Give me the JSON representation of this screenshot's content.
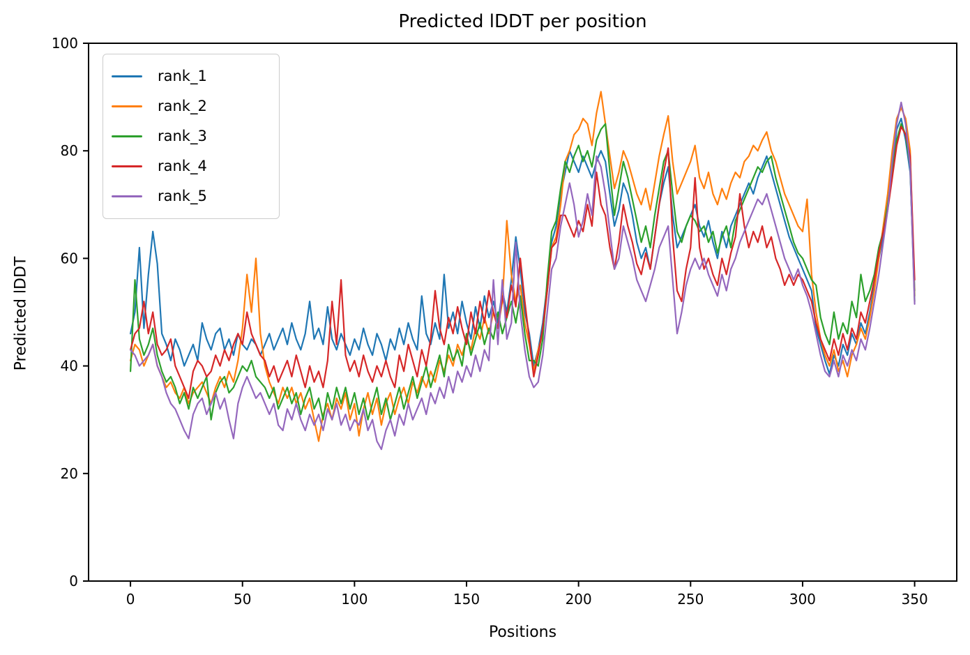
{
  "figure": {
    "title": "Predicted lDDT per position",
    "xlabel": "Positions",
    "ylabel": "Predicted lDDT",
    "background_color": "#ffffff",
    "spine_color": "#000000",
    "legend_border_color": "#cccccc"
  },
  "chart_data": {
    "type": "line",
    "title": "Predicted lDDT per position",
    "xlabel": "Positions",
    "ylabel": "Predicted lDDT",
    "xlim": [
      -18.7,
      368.8
    ],
    "ylim": [
      0,
      100
    ],
    "xticks": [
      0,
      50,
      100,
      150,
      200,
      250,
      300,
      350
    ],
    "yticks": [
      0,
      20,
      40,
      60,
      80,
      100
    ],
    "grid": false,
    "legend_position": "upper left",
    "line_width": 2.2,
    "x_start": 0,
    "x_step": 2,
    "series": [
      {
        "name": "rank_1",
        "color": "#1f77b4",
        "values": [
          46,
          50,
          62,
          47,
          57,
          65,
          59,
          46,
          44,
          41,
          45,
          43,
          40,
          42,
          44,
          41,
          48,
          45,
          43,
          46,
          47,
          43,
          45,
          42,
          46,
          44,
          43,
          45,
          44,
          42,
          44,
          46,
          43,
          45,
          47,
          44,
          48,
          45,
          43,
          46,
          52,
          45,
          47,
          44,
          51,
          45,
          43,
          46,
          44,
          42,
          45,
          43,
          47,
          44,
          42,
          46,
          44,
          41,
          45,
          43,
          47,
          44,
          48,
          45,
          43,
          53,
          46,
          44,
          48,
          45,
          57,
          47,
          50,
          46,
          52,
          48,
          45,
          51,
          47,
          53,
          49,
          52,
          48,
          54,
          50,
          56,
          64,
          58,
          50,
          46,
          40,
          43,
          48,
          55,
          63,
          66,
          72,
          76,
          80,
          78,
          76,
          79,
          77,
          75,
          78,
          80,
          78,
          72,
          66,
          69,
          74,
          72,
          68,
          63,
          60,
          62,
          58,
          64,
          70,
          74,
          77,
          68,
          62,
          64,
          66,
          68,
          70,
          66,
          64,
          67,
          63,
          60,
          65,
          62,
          66,
          68,
          70,
          72,
          74,
          72,
          75,
          77,
          79,
          76,
          73,
          70,
          67,
          64,
          62,
          60,
          58,
          56,
          54,
          47,
          44,
          41,
          38.5,
          42,
          40,
          44,
          42,
          46,
          44,
          48,
          46,
          50,
          55,
          60,
          64,
          70,
          77,
          84,
          86,
          82,
          76,
          54
        ]
      },
      {
        "name": "rank_2",
        "color": "#ff7f0e",
        "values": [
          41,
          44,
          43,
          40,
          42,
          44,
          40,
          38,
          36,
          37,
          35,
          34,
          36,
          33,
          35,
          36,
          37,
          35,
          33,
          36,
          38,
          36,
          39,
          37,
          41,
          47,
          57,
          50,
          60,
          46,
          40,
          37,
          35,
          33,
          36,
          34,
          36,
          33,
          35,
          32,
          34,
          30,
          26,
          31,
          33,
          30,
          34,
          32,
          35,
          30,
          33,
          27,
          32,
          35,
          31,
          34,
          29,
          33,
          35,
          31,
          34,
          36,
          33,
          37,
          35,
          38,
          36,
          39,
          37,
          41,
          39,
          42,
          40,
          44,
          42,
          45,
          43,
          47,
          45,
          49,
          46,
          50,
          47,
          52,
          67,
          57,
          52,
          55,
          48,
          44,
          39,
          43,
          46,
          54,
          62,
          64,
          70,
          78,
          80,
          83,
          84,
          86,
          85,
          81,
          87,
          91,
          85,
          79,
          73,
          76,
          80,
          78,
          75,
          72,
          70,
          73,
          69,
          74,
          79,
          83,
          86.5,
          78,
          72,
          74,
          76,
          78,
          81,
          75,
          73,
          76,
          72,
          70,
          73,
          71,
          74,
          76,
          75,
          78,
          79,
          81,
          80,
          82,
          83.5,
          80,
          78,
          75,
          72,
          70,
          68,
          66,
          65,
          71,
          57,
          50,
          45,
          42,
          40,
          43,
          39,
          41,
          38,
          42,
          44,
          47,
          45,
          49,
          54,
          60,
          66,
          72,
          80,
          86,
          88,
          86,
          80,
          53
        ]
      },
      {
        "name": "rank_3",
        "color": "#2ca02c",
        "values": [
          39,
          56,
          45,
          42,
          44,
          47,
          42,
          39,
          37,
          38,
          36,
          33,
          35,
          32,
          36,
          34,
          36,
          38,
          30,
          35,
          37,
          38,
          35,
          36,
          38,
          40,
          39,
          41,
          38,
          37,
          36,
          34,
          36,
          32,
          34,
          36,
          33,
          35,
          31,
          34,
          36,
          32,
          34,
          30,
          35,
          32,
          36,
          33,
          36,
          32,
          35,
          31,
          34,
          30,
          33,
          36,
          31,
          34,
          30,
          33,
          36,
          32,
          35,
          38,
          34,
          37,
          40,
          36,
          39,
          42,
          38,
          44,
          41,
          43,
          40,
          46,
          42,
          45,
          48,
          44,
          47,
          45,
          50,
          46,
          49,
          52,
          48,
          53,
          46,
          41,
          41,
          40,
          45,
          56,
          65,
          67,
          73,
          78,
          76,
          79,
          81,
          78,
          80,
          77,
          82,
          84,
          85,
          76,
          68,
          73,
          78,
          75,
          71,
          67,
          63,
          66,
          62,
          68,
          73,
          78,
          80,
          72,
          65,
          63,
          66,
          68,
          67,
          65,
          66,
          63,
          65,
          61,
          64,
          66,
          62,
          67,
          69,
          71,
          73,
          75,
          77,
          76,
          78,
          79,
          75,
          72,
          69,
          66,
          63,
          61,
          60,
          58,
          56,
          55,
          49,
          46,
          44,
          50,
          45,
          48,
          46,
          52,
          49,
          57,
          52,
          54,
          57,
          62,
          65,
          70,
          76,
          82,
          85,
          83,
          77,
          52
        ]
      },
      {
        "name": "rank_4",
        "color": "#d62728",
        "values": [
          43,
          46,
          47,
          52,
          46,
          50,
          44,
          42,
          43,
          45,
          40,
          38,
          36,
          34,
          39,
          41,
          40,
          38,
          39,
          42,
          40,
          43,
          41,
          44,
          46,
          44,
          50,
          46,
          44,
          42,
          41,
          38,
          40,
          37,
          39,
          41,
          38,
          42,
          39,
          36,
          40,
          37,
          39,
          36,
          41,
          52,
          44,
          56,
          42,
          39,
          41,
          38,
          42,
          39,
          37,
          40,
          38,
          41,
          38,
          36,
          42,
          39,
          44,
          41,
          38,
          43,
          40,
          45,
          54,
          47,
          44,
          49,
          46,
          51,
          47,
          44,
          50,
          46,
          52,
          48,
          54,
          50,
          47,
          53,
          49,
          55,
          51,
          60,
          52,
          45,
          38,
          42,
          47,
          54,
          62,
          63,
          68,
          68,
          66,
          64,
          67,
          65,
          70,
          66,
          76,
          70,
          68,
          62,
          58,
          63,
          70,
          66,
          63,
          59,
          57,
          61,
          58,
          64,
          70,
          76,
          80.5,
          64,
          54,
          52,
          58,
          62,
          75,
          62,
          58,
          60,
          57,
          55,
          60,
          57,
          61,
          64,
          72,
          66,
          62,
          65,
          63,
          66,
          62,
          64,
          60,
          58,
          55,
          57,
          55,
          57,
          56,
          54,
          52,
          48,
          45,
          43,
          41,
          45,
          42,
          46,
          43,
          47,
          45,
          50,
          48,
          52,
          56,
          61,
          65,
          69,
          75,
          81,
          84.5,
          83,
          79,
          56
        ]
      },
      {
        "name": "rank_5",
        "color": "#9467bd",
        "values": [
          43,
          42,
          40,
          41,
          42,
          44,
          40,
          38,
          35,
          33,
          32,
          30,
          28,
          26.5,
          31,
          33,
          34,
          31,
          33,
          35,
          32,
          34,
          30,
          26.5,
          33,
          36,
          38,
          36,
          34,
          35,
          33,
          31,
          33,
          29,
          28,
          32,
          30,
          33,
          30,
          28,
          31,
          29,
          31,
          28,
          32,
          30,
          33,
          29,
          31,
          28,
          30,
          29,
          32,
          28,
          30,
          26,
          24.5,
          28,
          30,
          27,
          31,
          29,
          33,
          30,
          32,
          34,
          31,
          35,
          33,
          36,
          34,
          38,
          35,
          39,
          37,
          40,
          38,
          42,
          39,
          43,
          41,
          56,
          44,
          56,
          45,
          48,
          63,
          50,
          43,
          38,
          36,
          37,
          42,
          50,
          58,
          60,
          66,
          70,
          74,
          70,
          64,
          67,
          72,
          68,
          79,
          77,
          72,
          65,
          58,
          60,
          66,
          63,
          60,
          56,
          54,
          52,
          55,
          58,
          62,
          64,
          66,
          56,
          46,
          50,
          55,
          58,
          60,
          58,
          60,
          57,
          55,
          53,
          57,
          54,
          58,
          60,
          63,
          65,
          67,
          69,
          71,
          70,
          72,
          69,
          66,
          63,
          60,
          58,
          56,
          58,
          55,
          53,
          50,
          46,
          42,
          39,
          38,
          41,
          38,
          42,
          40,
          43,
          41,
          45,
          43,
          47,
          52,
          57,
          63,
          69,
          78,
          85,
          89,
          85,
          77,
          51.5
        ]
      }
    ]
  }
}
